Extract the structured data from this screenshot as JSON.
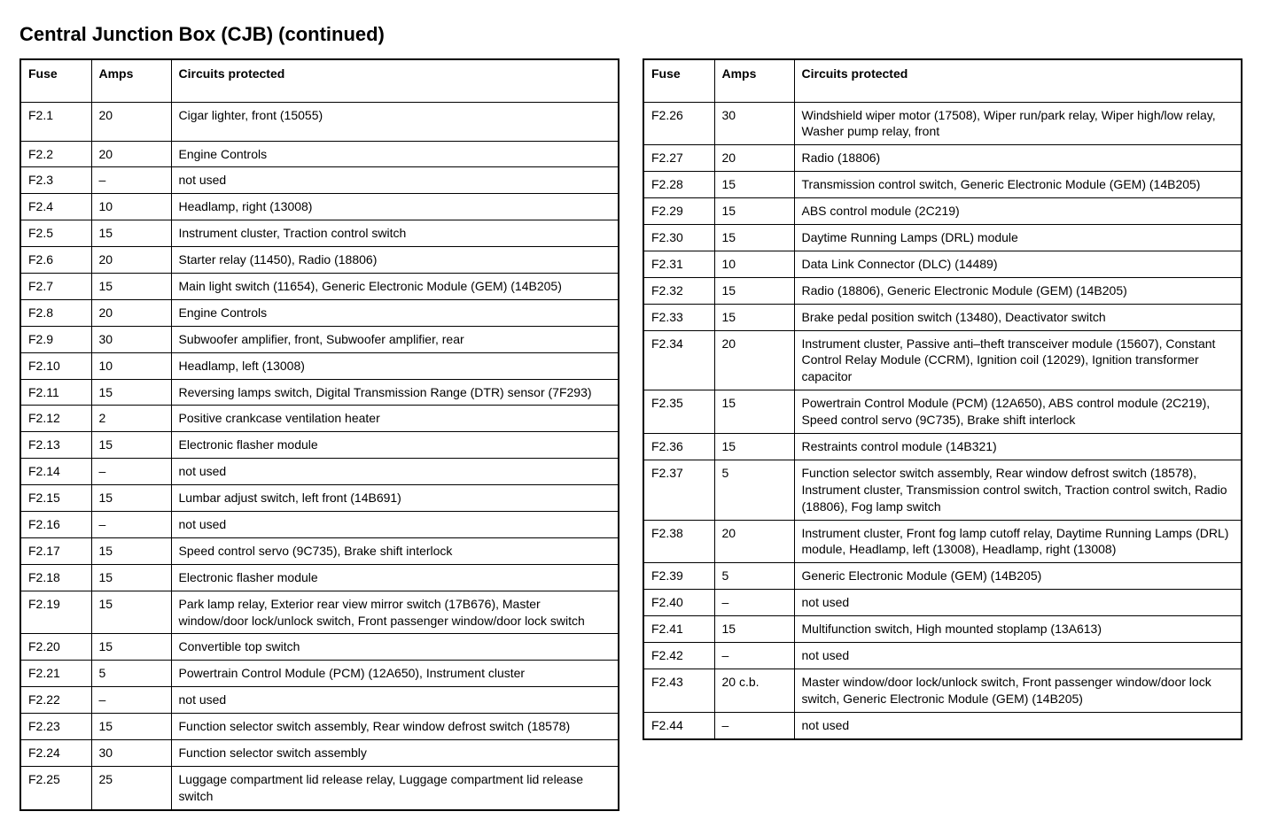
{
  "title": "Central Junction Box (CJB) (continued)",
  "columns": [
    "Fuse",
    "Amps",
    "Circuits protected"
  ],
  "type": "table",
  "border_color": "#000000",
  "background_color": "#ffffff",
  "text_color": "#000000",
  "header_fontweight": "bold",
  "body_fontsize": 14,
  "title_fontsize": 22,
  "col_widths": {
    "fuse": 80,
    "amps": 90,
    "circuits": "auto"
  },
  "left_rows": [
    {
      "fuse": "F2.1",
      "amps": "20",
      "circuits": "Cigar lighter, front (15055)"
    },
    {
      "fuse": "F2.2",
      "amps": "20",
      "circuits": "Engine Controls"
    },
    {
      "fuse": "F2.3",
      "amps": "–",
      "circuits": "not used"
    },
    {
      "fuse": "F2.4",
      "amps": "10",
      "circuits": "Headlamp, right (13008)"
    },
    {
      "fuse": "F2.5",
      "amps": "15",
      "circuits": "Instrument cluster, Traction control switch"
    },
    {
      "fuse": "F2.6",
      "amps": "20",
      "circuits": "Starter relay (11450), Radio (18806)"
    },
    {
      "fuse": "F2.7",
      "amps": "15",
      "circuits": "Main light switch (11654), Generic Electronic Module (GEM) (14B205)"
    },
    {
      "fuse": "F2.8",
      "amps": "20",
      "circuits": "Engine Controls"
    },
    {
      "fuse": "F2.9",
      "amps": "30",
      "circuits": "Subwoofer amplifier, front, Subwoofer amplifier, rear"
    },
    {
      "fuse": "F2.10",
      "amps": "10",
      "circuits": "Headlamp, left (13008)"
    },
    {
      "fuse": "F2.11",
      "amps": "15",
      "circuits": "Reversing lamps switch, Digital Transmission Range (DTR) sensor (7F293)"
    },
    {
      "fuse": "F2.12",
      "amps": "2",
      "circuits": "Positive crankcase ventilation heater"
    },
    {
      "fuse": "F2.13",
      "amps": "15",
      "circuits": "Electronic flasher module"
    },
    {
      "fuse": "F2.14",
      "amps": "–",
      "circuits": "not used"
    },
    {
      "fuse": "F2.15",
      "amps": "15",
      "circuits": "Lumbar adjust switch, left front (14B691)"
    },
    {
      "fuse": "F2.16",
      "amps": "–",
      "circuits": "not used"
    },
    {
      "fuse": "F2.17",
      "amps": "15",
      "circuits": "Speed control servo (9C735), Brake shift interlock"
    },
    {
      "fuse": "F2.18",
      "amps": "15",
      "circuits": "Electronic flasher module"
    },
    {
      "fuse": "F2.19",
      "amps": "15",
      "circuits": "Park lamp relay, Exterior rear view mirror switch (17B676), Master window/door lock/unlock switch, Front passenger window/door lock switch"
    },
    {
      "fuse": "F2.20",
      "amps": "15",
      "circuits": "Convertible top switch"
    },
    {
      "fuse": "F2.21",
      "amps": "5",
      "circuits": "Powertrain Control Module (PCM) (12A650), Instrument cluster"
    },
    {
      "fuse": "F2.22",
      "amps": "–",
      "circuits": "not used"
    },
    {
      "fuse": "F2.23",
      "amps": "15",
      "circuits": "Function selector switch assembly, Rear window defrost switch (18578)"
    },
    {
      "fuse": "F2.24",
      "amps": "30",
      "circuits": "Function selector switch assembly"
    },
    {
      "fuse": "F2.25",
      "amps": "25",
      "circuits": "Luggage compartment lid release relay, Luggage compartment lid release switch"
    }
  ],
  "right_rows": [
    {
      "fuse": "F2.26",
      "amps": "30",
      "circuits": "Windshield wiper motor (17508), Wiper run/park relay, Wiper high/low relay, Washer pump relay, front"
    },
    {
      "fuse": "F2.27",
      "amps": "20",
      "circuits": "Radio (18806)"
    },
    {
      "fuse": "F2.28",
      "amps": "15",
      "circuits": "Transmission control switch, Generic Electronic Module (GEM) (14B205)"
    },
    {
      "fuse": "F2.29",
      "amps": "15",
      "circuits": "ABS control module (2C219)"
    },
    {
      "fuse": "F2.30",
      "amps": "15",
      "circuits": "Daytime Running Lamps (DRL) module"
    },
    {
      "fuse": "F2.31",
      "amps": "10",
      "circuits": "Data Link Connector (DLC) (14489)"
    },
    {
      "fuse": "F2.32",
      "amps": "15",
      "circuits": "Radio (18806), Generic Electronic Module (GEM) (14B205)"
    },
    {
      "fuse": "F2.33",
      "amps": "15",
      "circuits": "Brake pedal position switch (13480), Deactivator switch"
    },
    {
      "fuse": "F2.34",
      "amps": "20",
      "circuits": "Instrument cluster, Passive anti–theft transceiver module (15607), Constant Control Relay Module (CCRM), Ignition coil (12029), Ignition transformer capacitor"
    },
    {
      "fuse": "F2.35",
      "amps": "15",
      "circuits": "Powertrain Control Module (PCM) (12A650), ABS control module (2C219), Speed control servo (9C735), Brake shift interlock"
    },
    {
      "fuse": "F2.36",
      "amps": "15",
      "circuits": "Restraints control module (14B321)"
    },
    {
      "fuse": "F2.37",
      "amps": "5",
      "circuits": "Function selector switch assembly, Rear window defrost switch (18578), Instrument cluster, Transmission control switch, Traction control switch, Radio (18806), Fog lamp switch"
    },
    {
      "fuse": "F2.38",
      "amps": "20",
      "circuits": "Instrument cluster, Front fog lamp cutoff relay, Daytime Running Lamps (DRL) module, Headlamp, left (13008), Headlamp, right (13008)"
    },
    {
      "fuse": "F2.39",
      "amps": "5",
      "circuits": "Generic Electronic Module (GEM) (14B205)"
    },
    {
      "fuse": "F2.40",
      "amps": "–",
      "circuits": "not used"
    },
    {
      "fuse": "F2.41",
      "amps": "15",
      "circuits": "Multifunction switch, High mounted stoplamp (13A613)"
    },
    {
      "fuse": "F2.42",
      "amps": "–",
      "circuits": "not used"
    },
    {
      "fuse": "F2.43",
      "amps": "20 c.b.",
      "circuits": "Master window/door lock/unlock switch, Front passenger window/door lock switch, Generic Electronic Module (GEM) (14B205)"
    },
    {
      "fuse": "F2.44",
      "amps": "–",
      "circuits": "not used"
    }
  ]
}
